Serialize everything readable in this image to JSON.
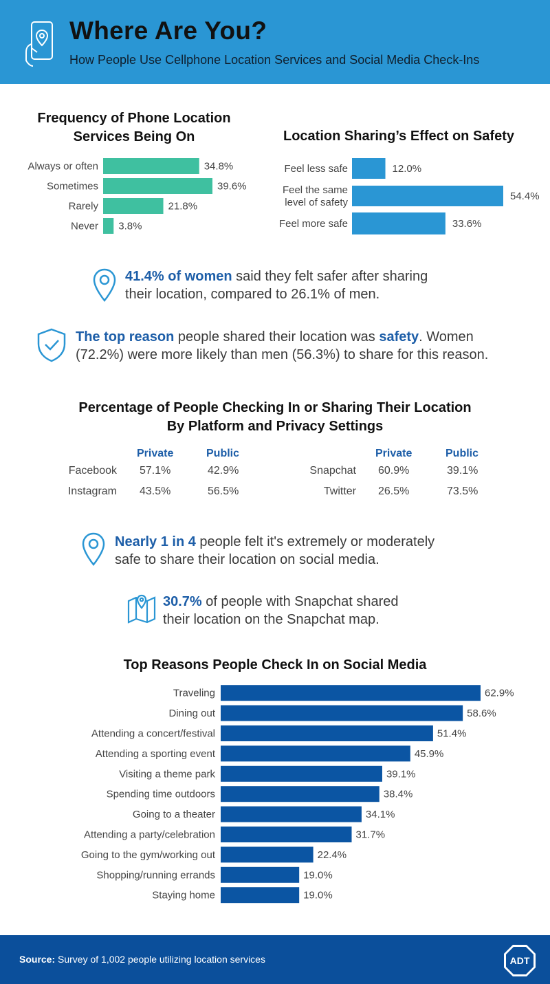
{
  "header": {
    "title": "Where Are You?",
    "subtitle": "How People Use Cellphone Location Services and Social Media Check-Ins",
    "icon": "phone-location-icon",
    "background": "#2a96d4"
  },
  "chart_data": [
    {
      "id": "frequency",
      "type": "bar",
      "orientation": "horizontal",
      "title_line1": "Frequency of Phone Location",
      "title_line2": "Services Being On",
      "categories": [
        "Always or often",
        "Sometimes",
        "Rarely",
        "Never"
      ],
      "values": [
        34.8,
        39.6,
        21.8,
        3.8
      ],
      "value_labels": [
        "34.8%",
        "39.6%",
        "21.8%",
        "3.8%"
      ],
      "color": "#3fc0a0",
      "xlim": [
        0,
        39.6
      ]
    },
    {
      "id": "safety",
      "type": "bar",
      "orientation": "horizontal",
      "title": "Location Sharing’s Effect on Safety",
      "categories": [
        "Feel less safe",
        "Feel the same level of safety",
        "Feel more safe"
      ],
      "category_lines": [
        [
          "Feel less safe"
        ],
        [
          "Feel the same",
          "level of safety"
        ],
        [
          "Feel more safe"
        ]
      ],
      "values": [
        12.0,
        54.4,
        33.6
      ],
      "value_labels": [
        "12.0%",
        "54.4%",
        "33.6%"
      ],
      "color": "#2a96d4",
      "xlim": [
        0,
        54.4
      ]
    },
    {
      "id": "platform",
      "type": "table",
      "title_line1": "Percentage of People Checking In or Sharing Their Location",
      "title_line2": "By Platform and Privacy Settings",
      "columns": [
        "Private",
        "Public"
      ],
      "rows": [
        {
          "platform": "Facebook",
          "private": "57.1%",
          "public": "42.9%"
        },
        {
          "platform": "Instagram",
          "private": "43.5%",
          "public": "56.5%"
        },
        {
          "platform": "Snapchat",
          "private": "60.9%",
          "public": "39.1%"
        },
        {
          "platform": "Twitter",
          "private": "26.5%",
          "public": "73.5%"
        }
      ]
    },
    {
      "id": "reasons",
      "type": "bar",
      "orientation": "horizontal",
      "title": "Top Reasons People Check In on Social Media",
      "categories": [
        "Traveling",
        "Dining out",
        "Attending a concert/festival",
        "Attending a sporting event",
        "Visiting a theme park",
        "Spending time outdoors",
        "Going to a theater",
        "Attending a party/celebration",
        "Going to the gym/working out",
        "Shopping/running errands",
        "Staying home"
      ],
      "values": [
        62.9,
        58.6,
        51.4,
        45.9,
        39.1,
        38.4,
        34.1,
        31.7,
        22.4,
        19.0,
        19.0
      ],
      "value_labels": [
        "62.9%",
        "58.6%",
        "51.4%",
        "45.9%",
        "39.1%",
        "38.4%",
        "34.1%",
        "31.7%",
        "22.4%",
        "19.0%",
        "19.0%"
      ],
      "color": "#0b55a3",
      "xlim": [
        0,
        62.9
      ]
    }
  ],
  "callouts": {
    "women": {
      "icon": "location-pin-icon",
      "highlight": "41.4% of women",
      "text_line1": " said they felt safer after sharing",
      "text_line2": "their location, compared to 26.1% of men."
    },
    "top_reason": {
      "icon": "shield-check-icon",
      "highlight": "The top reason",
      "text_a": " people shared their location was ",
      "highlight2": "safety",
      "text_b": ". Women",
      "text_line2": "(72.2%) were more likely than men (56.3%) to share for this reason."
    },
    "nearly": {
      "icon": "location-pin-icon",
      "highlight": "Nearly 1 in 4",
      "text_line1": " people felt it's extremely or moderately",
      "text_line2": "safe to share their location on social media."
    },
    "snapchat": {
      "icon": "map-icon",
      "highlight": "30.7%",
      "text_line1": " of people with Snapchat shared",
      "text_line2": "their location on the Snapchat map."
    }
  },
  "footer": {
    "source_label": "Source:",
    "source_text": "Survey of 1,002 people utilizing location services",
    "logo_text": "ADT",
    "background": "#0b4f9b"
  }
}
